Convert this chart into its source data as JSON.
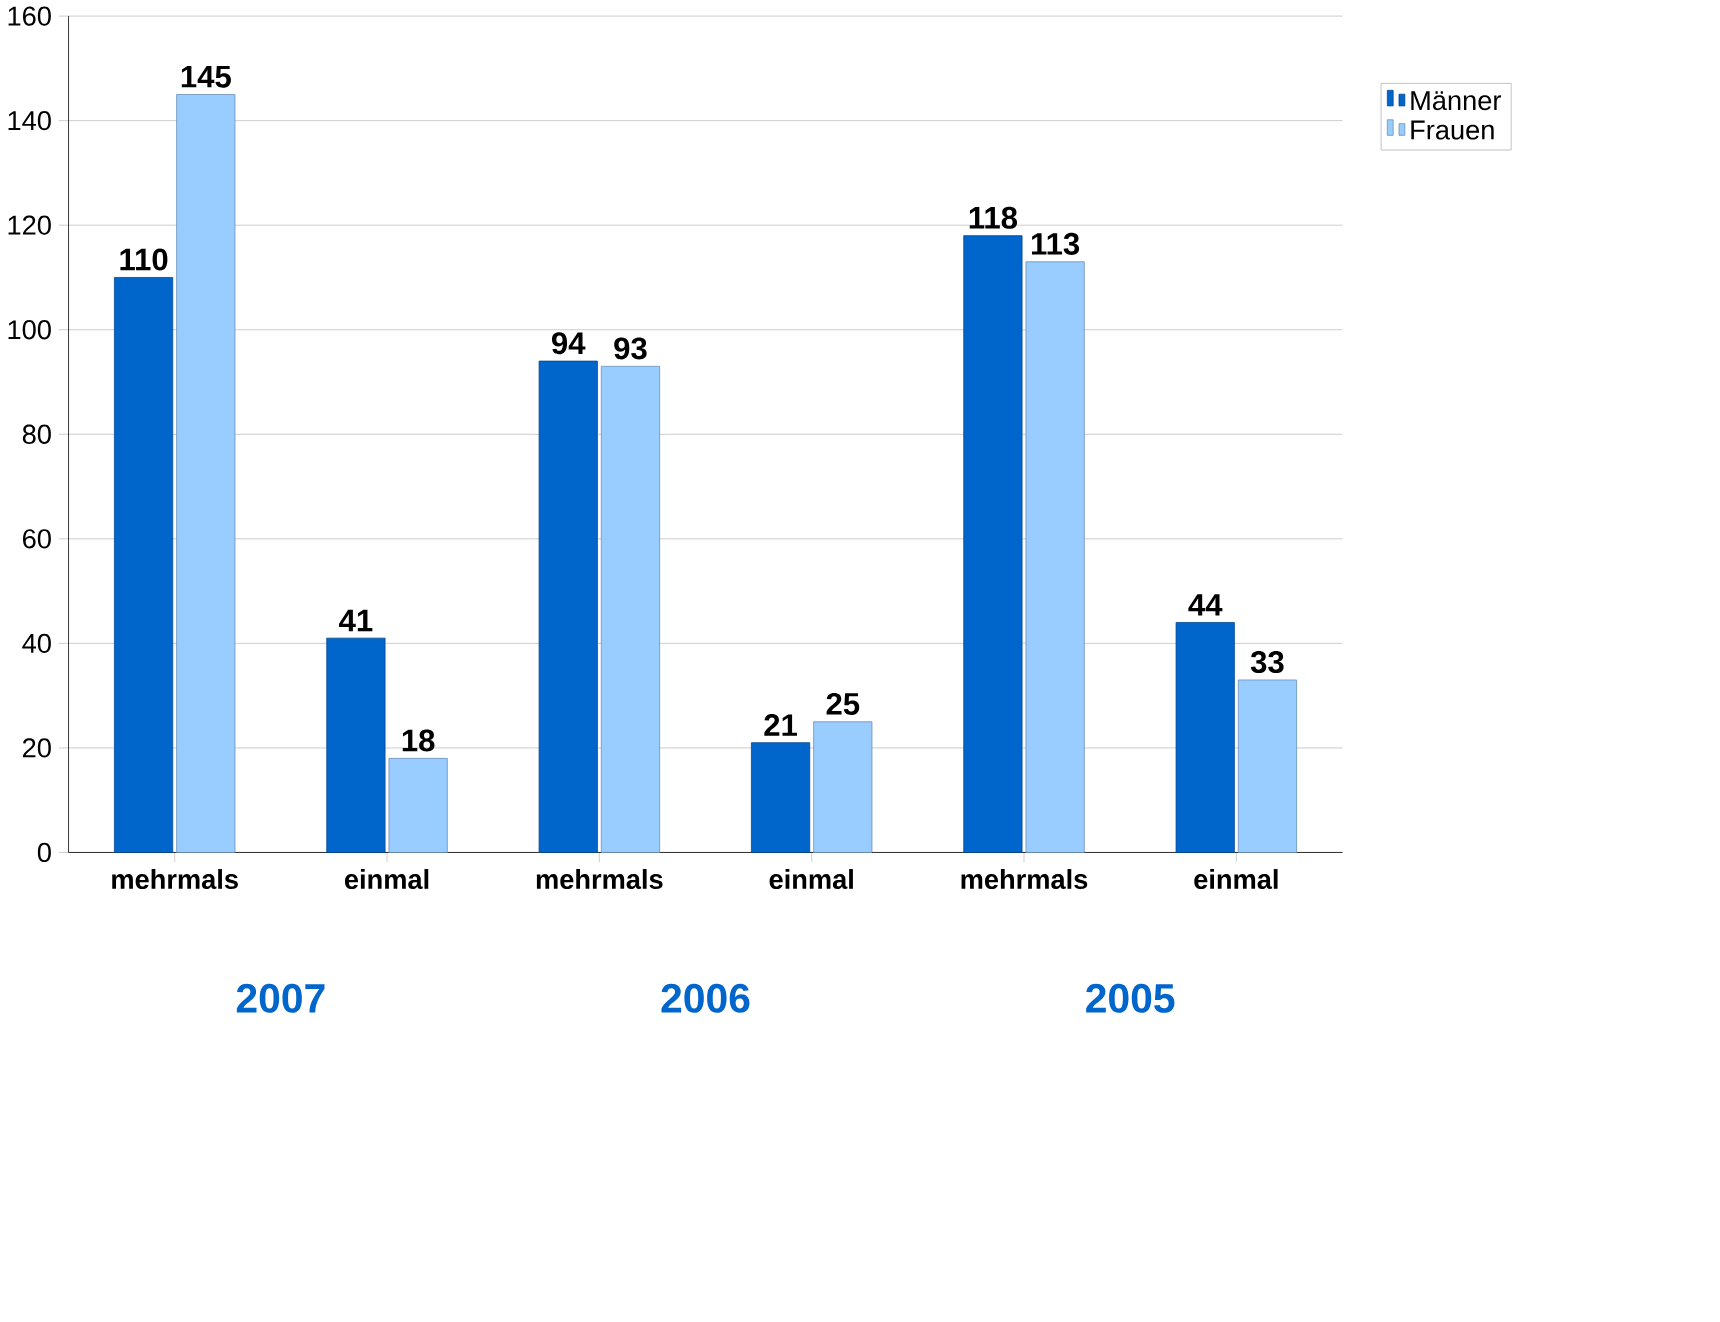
{
  "chart_data": {
    "type": "bar",
    "categories": [
      "mehrmals",
      "einmal",
      "mehrmals",
      "einmal",
      "mehrmals",
      "einmal"
    ],
    "series": [
      {
        "name": "Männer",
        "color": "#0066cc",
        "values": [
          110,
          41,
          94,
          21,
          118,
          44
        ]
      },
      {
        "name": "Frauen",
        "color": "#99ccff",
        "values": [
          145,
          18,
          93,
          25,
          113,
          33
        ]
      }
    ],
    "annotations": [
      "2007",
      "2006",
      "2005"
    ],
    "ylim": [
      0,
      160
    ],
    "yticks": [
      0,
      20,
      40,
      60,
      80,
      100,
      120,
      140,
      160
    ],
    "grid": "y",
    "legend": "right",
    "data_labels": true
  }
}
